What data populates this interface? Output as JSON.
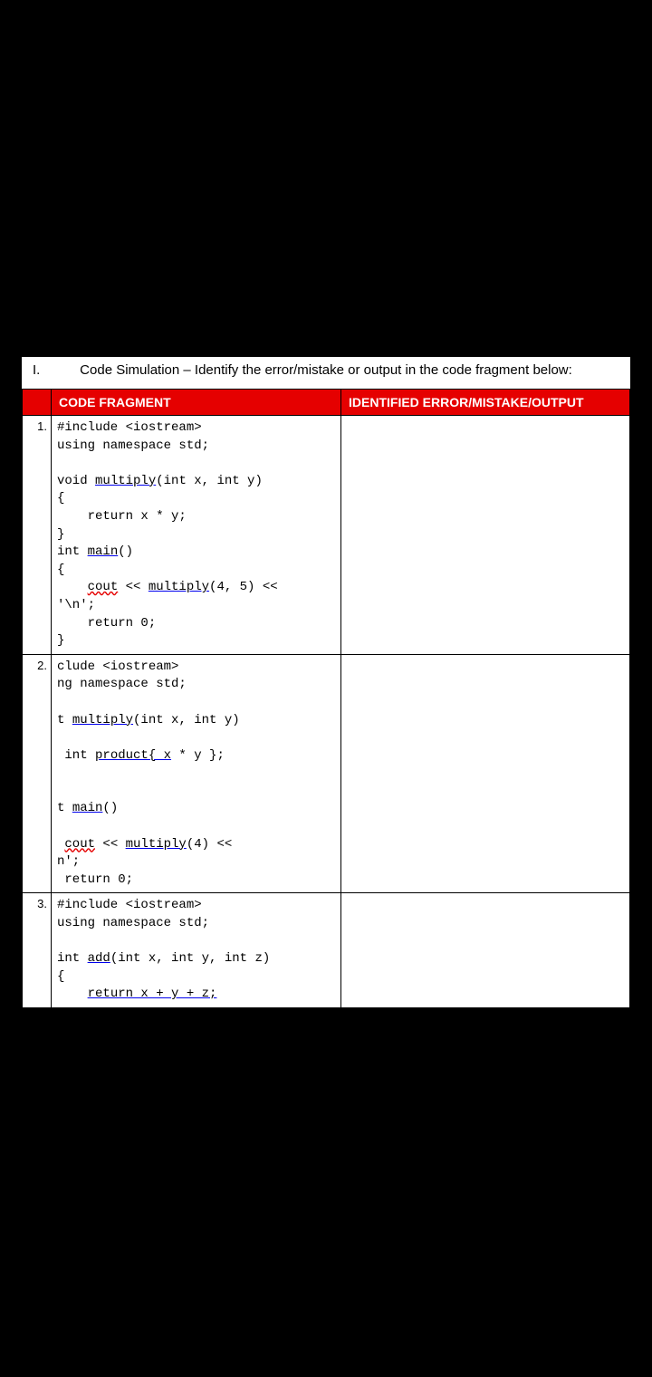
{
  "section": {
    "number": "I.",
    "title": "Code Simulation – Identify the error/mistake or output in the code fragment below:"
  },
  "table": {
    "headers": {
      "num": "",
      "code": "CODE FRAGMENT",
      "answer": "IDENTIFIED ERROR/MISTAKE/OUTPUT"
    },
    "rows": [
      {
        "num": "1.",
        "code_lines": [
          {
            "text": "#include <iostream>",
            "plain": true
          },
          {
            "text": "using namespace std;",
            "plain": true
          },
          {
            "text": "",
            "plain": true
          },
          {
            "prefix": "void ",
            "fn": "multiply",
            "suffix": "(int x, int y)"
          },
          {
            "text": "{",
            "plain": true
          },
          {
            "text": "    return x * y;",
            "plain": true
          },
          {
            "text": "}",
            "plain": true
          },
          {
            "prefix": "int ",
            "fn": "main",
            "suffix": "()"
          },
          {
            "text": "{",
            "plain": true
          },
          {
            "prefix": "    ",
            "kw": "cout",
            "mid": " << ",
            "fn": "multiply",
            "suffix": "(4, 5) <<"
          },
          {
            "text": "'\\n';",
            "plain": true
          },
          {
            "text": "    return 0;",
            "plain": true
          },
          {
            "text": "}",
            "plain": true
          }
        ]
      },
      {
        "num": "2.",
        "code_lines": [
          {
            "text": "clude <iostream>",
            "plain": true
          },
          {
            "text": "ng namespace std;",
            "plain": true
          },
          {
            "text": "",
            "plain": true
          },
          {
            "prefix": "t ",
            "fn": "multiply",
            "suffix": "(int x, int y)"
          },
          {
            "text": "",
            "plain": true
          },
          {
            "prefix": " int ",
            "fn": "product{ x",
            "suffix": " * y };"
          },
          {
            "text": "",
            "plain": true
          },
          {
            "text": "",
            "plain": true
          },
          {
            "prefix": "t ",
            "fn": "main",
            "suffix": "()"
          },
          {
            "text": "",
            "plain": true
          },
          {
            "prefix": " ",
            "kw": "cout",
            "mid": " << ",
            "fn": "multiply",
            "suffix": "(4) <<"
          },
          {
            "text": "n';",
            "plain": true
          },
          {
            "text": " return 0;",
            "plain": true
          }
        ]
      },
      {
        "num": "3.",
        "code_lines": [
          {
            "text": "#include <iostream>",
            "plain": true
          },
          {
            "text": "using namespace std;",
            "plain": true
          },
          {
            "text": "",
            "plain": true
          },
          {
            "prefix": "int ",
            "fn": "add",
            "suffix": "(int x, int y, int z)"
          },
          {
            "text": "{",
            "plain": true
          },
          {
            "prefix": "    ",
            "fn": "return x + y + z;",
            "suffix": ""
          }
        ]
      }
    ]
  },
  "colors": {
    "header_bg": "#e50000",
    "header_text": "#ffffff",
    "border": "#000000",
    "background": "#000000",
    "doc_bg": "#ffffff"
  }
}
